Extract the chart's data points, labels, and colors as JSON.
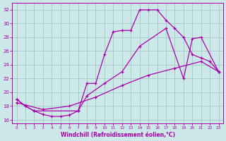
{
  "xlabel": "Windchill (Refroidissement éolien,°C)",
  "bg_color": "#cce8e8",
  "grid_color": "#aacccc",
  "line_color": "#aa00aa",
  "xlim": [
    -0.5,
    23.5
  ],
  "ylim": [
    15.5,
    33.0
  ],
  "yticks": [
    16,
    18,
    20,
    22,
    24,
    26,
    28,
    30,
    32
  ],
  "xticks": [
    0,
    1,
    2,
    3,
    4,
    5,
    6,
    7,
    8,
    9,
    10,
    11,
    12,
    13,
    14,
    15,
    16,
    17,
    18,
    19,
    20,
    21,
    22,
    23
  ],
  "curve1_x": [
    0,
    1,
    2,
    3,
    4,
    5,
    6,
    7,
    8,
    9,
    10,
    11,
    12,
    13,
    14,
    15,
    16,
    17,
    18,
    19,
    20,
    21,
    22,
    23
  ],
  "curve1_y": [
    19.0,
    18.0,
    17.3,
    16.8,
    16.5,
    16.5,
    16.7,
    17.3,
    21.3,
    21.3,
    25.5,
    28.8,
    29.0,
    29.0,
    32.0,
    32.0,
    32.0,
    30.5,
    29.3,
    28.0,
    25.5,
    25.0,
    24.5,
    23.0
  ],
  "curve2_x": [
    0,
    1,
    2,
    7,
    8,
    10,
    12,
    14,
    17,
    19,
    20,
    21,
    23
  ],
  "curve2_y": [
    19.0,
    18.0,
    17.3,
    17.3,
    19.5,
    21.3,
    23.0,
    26.7,
    29.3,
    22.0,
    27.8,
    28.0,
    23.0
  ],
  "curve3_x": [
    0,
    3,
    6,
    9,
    12,
    15,
    18,
    21,
    23
  ],
  "curve3_y": [
    18.5,
    17.5,
    18.0,
    19.3,
    21.0,
    22.5,
    23.5,
    24.5,
    23.0
  ]
}
